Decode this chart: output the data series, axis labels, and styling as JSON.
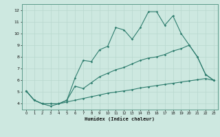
{
  "xlabel": "Humidex (Indice chaleur)",
  "bg_color": "#cde8e0",
  "line_color": "#2e7d6e",
  "grid_color": "#b8d8ce",
  "xlim": [
    -0.5,
    23.5
  ],
  "ylim": [
    3.5,
    12.5
  ],
  "xticks": [
    0,
    1,
    2,
    3,
    4,
    5,
    6,
    7,
    8,
    9,
    10,
    11,
    12,
    13,
    14,
    15,
    16,
    17,
    18,
    19,
    20,
    21,
    22,
    23
  ],
  "yticks": [
    4,
    5,
    6,
    7,
    8,
    9,
    10,
    11,
    12
  ],
  "line1_x": [
    0,
    1,
    2,
    3,
    4,
    5,
    6,
    7,
    8,
    9,
    10,
    11,
    12,
    13,
    14,
    15,
    16,
    17,
    18,
    19,
    20,
    21,
    22,
    23
  ],
  "line1_y": [
    5.1,
    4.3,
    4.0,
    3.8,
    4.0,
    4.3,
    6.2,
    7.7,
    7.6,
    8.6,
    8.9,
    10.5,
    10.3,
    9.5,
    10.5,
    11.85,
    11.85,
    10.7,
    11.5,
    10.0,
    9.0,
    8.0,
    6.5,
    6.0
  ],
  "line2_x": [
    0,
    1,
    2,
    3,
    4,
    5,
    6,
    7,
    8,
    9,
    10,
    11,
    12,
    13,
    14,
    15,
    16,
    17,
    18,
    19,
    20,
    21,
    22,
    23
  ],
  "line2_y": [
    5.1,
    4.3,
    4.0,
    4.0,
    4.0,
    4.3,
    5.5,
    5.3,
    5.8,
    6.3,
    6.6,
    6.9,
    7.1,
    7.4,
    7.7,
    7.9,
    8.0,
    8.2,
    8.5,
    8.7,
    9.0,
    8.0,
    6.5,
    6.0
  ],
  "line3_x": [
    0,
    1,
    2,
    3,
    4,
    5,
    6,
    7,
    8,
    9,
    10,
    11,
    12,
    13,
    14,
    15,
    16,
    17,
    18,
    19,
    20,
    21,
    22,
    23
  ],
  "line3_y": [
    5.1,
    4.3,
    4.0,
    4.0,
    4.0,
    4.15,
    4.3,
    4.45,
    4.6,
    4.75,
    4.9,
    5.0,
    5.1,
    5.2,
    5.35,
    5.45,
    5.55,
    5.65,
    5.75,
    5.85,
    5.95,
    6.05,
    6.15,
    6.0
  ]
}
